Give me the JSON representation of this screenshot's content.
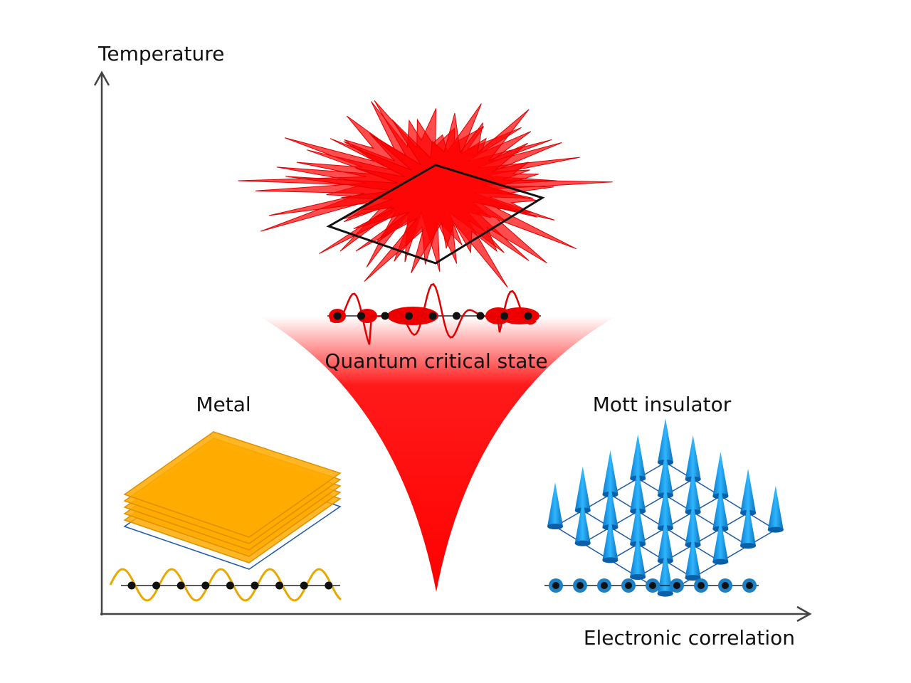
{
  "axes": {
    "y_label": "Temperature",
    "x_label": "Electronic correlation"
  },
  "regions": [
    {
      "label": "Metal"
    },
    {
      "label": "Quantum critical state"
    },
    {
      "label": "Mott insulator"
    }
  ]
}
